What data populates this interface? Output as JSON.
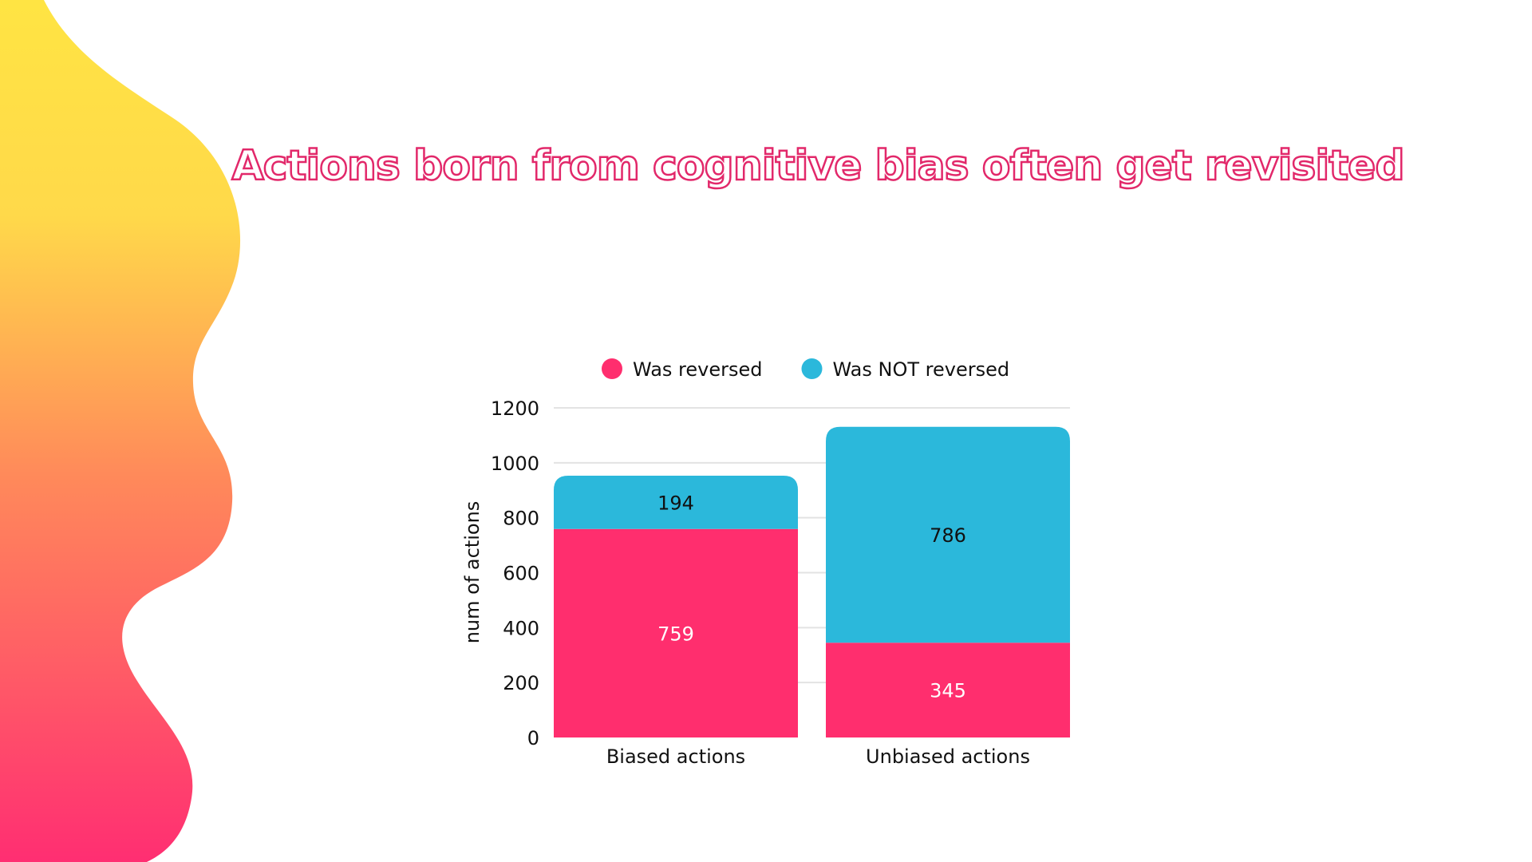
{
  "chart_data": {
    "type": "bar",
    "stacked": true,
    "title": "Actions born from cognitive bias often get revisited",
    "xlabel": "",
    "ylabel": "num of actions",
    "categories": [
      "Biased actions",
      "Unbiased actions"
    ],
    "series": [
      {
        "name": "Was reversed",
        "values": [
          759,
          345
        ],
        "color": "#FF2E6E",
        "label_color": "#FFFFFF"
      },
      {
        "name": "Was NOT reversed",
        "values": [
          194,
          786
        ],
        "color": "#2BB8DB",
        "label_color": "#111111"
      }
    ],
    "ylim": [
      0,
      1200
    ],
    "yticks": [
      0,
      200,
      400,
      600,
      800,
      1000,
      1200
    ],
    "grid": true,
    "legend_position": "top"
  },
  "colors": {
    "title": "#E2286A",
    "blob_top": "#FFE443",
    "blob_bottom": "#FF2E72"
  }
}
